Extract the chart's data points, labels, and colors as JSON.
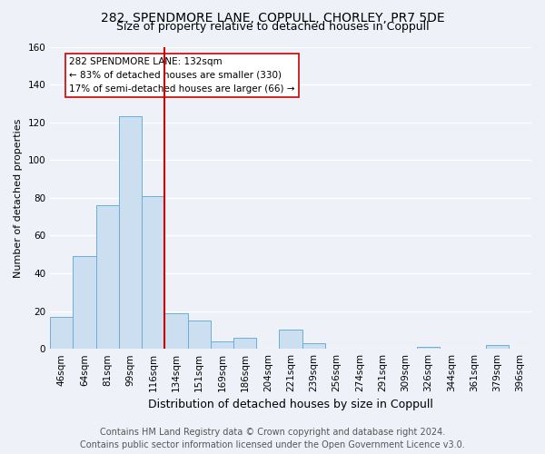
{
  "title": "282, SPENDMORE LANE, COPPULL, CHORLEY, PR7 5DE",
  "subtitle": "Size of property relative to detached houses in Coppull",
  "xlabel": "Distribution of detached houses by size in Coppull",
  "ylabel": "Number of detached properties",
  "bar_labels": [
    "46sqm",
    "64sqm",
    "81sqm",
    "99sqm",
    "116sqm",
    "134sqm",
    "151sqm",
    "169sqm",
    "186sqm",
    "204sqm",
    "221sqm",
    "239sqm",
    "256sqm",
    "274sqm",
    "291sqm",
    "309sqm",
    "326sqm",
    "344sqm",
    "361sqm",
    "379sqm",
    "396sqm"
  ],
  "bar_values": [
    17,
    49,
    76,
    123,
    81,
    19,
    15,
    4,
    6,
    0,
    10,
    3,
    0,
    0,
    0,
    0,
    1,
    0,
    0,
    2,
    0
  ],
  "bar_color": "#ccdff0",
  "bar_edge_color": "#6aaed6",
  "reference_line_color": "#cc0000",
  "annotation_text": "282 SPENDMORE LANE: 132sqm\n← 83% of detached houses are smaller (330)\n17% of semi-detached houses are larger (66) →",
  "annotation_box_color": "#ffffff",
  "annotation_box_edge": "#cc0000",
  "ylim": [
    0,
    160
  ],
  "yticks": [
    0,
    20,
    40,
    60,
    80,
    100,
    120,
    140,
    160
  ],
  "footer_line1": "Contains HM Land Registry data © Crown copyright and database right 2024.",
  "footer_line2": "Contains public sector information licensed under the Open Government Licence v3.0.",
  "title_fontsize": 10,
  "subtitle_fontsize": 9,
  "ylabel_fontsize": 8,
  "xlabel_fontsize": 9,
  "tick_fontsize": 7.5,
  "footer_fontsize": 7,
  "background_color": "#eef2f8",
  "grid_color": "#ffffff"
}
